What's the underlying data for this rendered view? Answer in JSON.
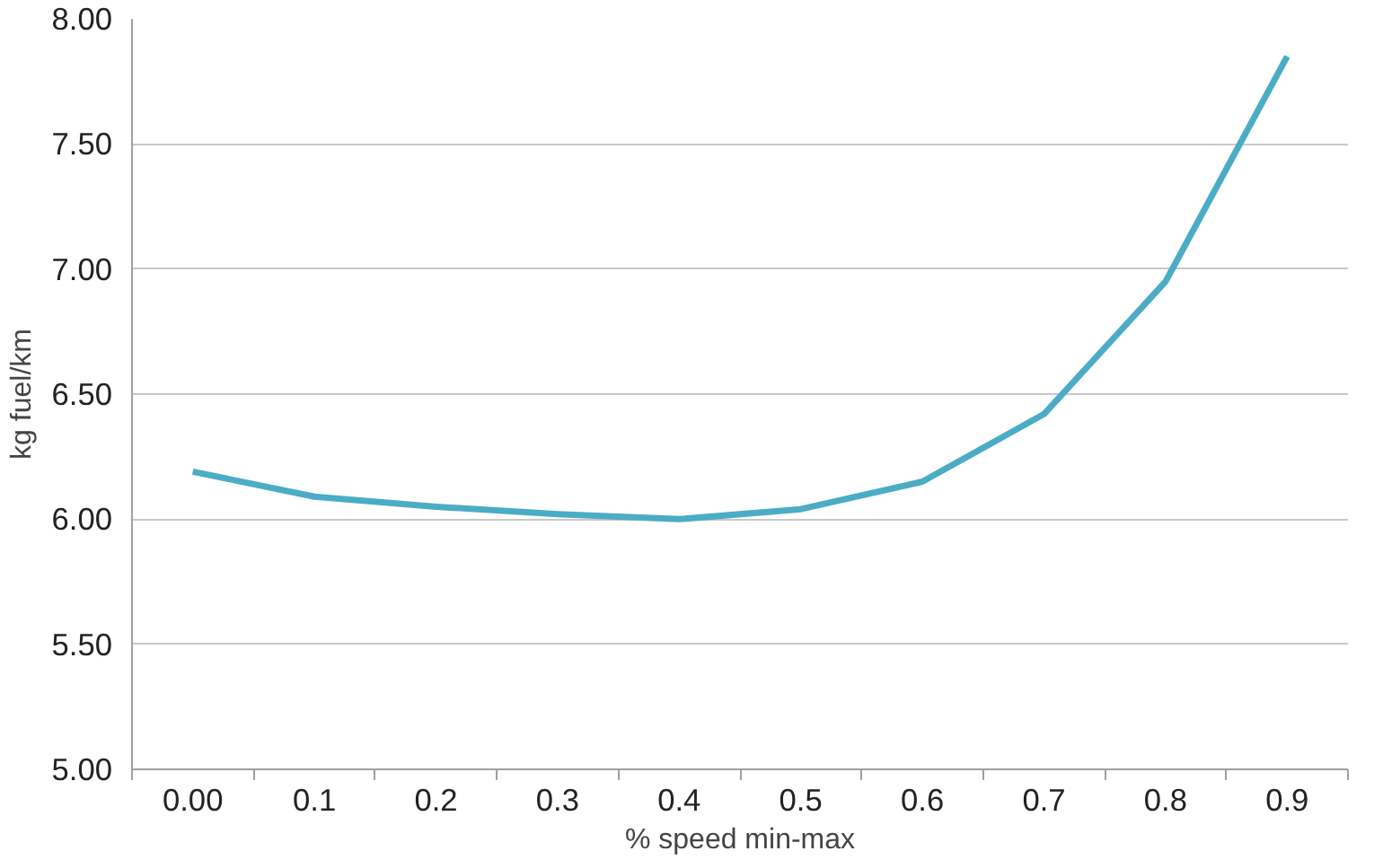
{
  "chart_data": {
    "type": "line",
    "xlabel": "% speed min-max",
    "ylabel": "kg fuel/km",
    "categories": [
      "0.00",
      "0.1",
      "0.2",
      "0.3",
      "0.4",
      "0.5",
      "0.6",
      "0.7",
      "0.8",
      "0.9"
    ],
    "series": [
      {
        "color": "#4bacc6",
        "values": [
          6.19,
          6.09,
          6.05,
          6.02,
          6.0,
          6.04,
          6.15,
          6.42,
          6.95,
          7.85
        ]
      }
    ],
    "ylim": [
      5.0,
      8.0
    ],
    "yticks": [
      {
        "value": 5.0,
        "label": "5.00"
      },
      {
        "value": 5.5,
        "label": "5.50"
      },
      {
        "value": 6.0,
        "label": "6.00"
      },
      {
        "value": 6.5,
        "label": "6.50"
      },
      {
        "value": 7.0,
        "label": "7.00"
      },
      {
        "value": 7.5,
        "label": "7.50"
      },
      {
        "value": 8.0,
        "label": "8.00"
      }
    ],
    "grid": "y",
    "marker": "none",
    "line_style": "solid"
  }
}
